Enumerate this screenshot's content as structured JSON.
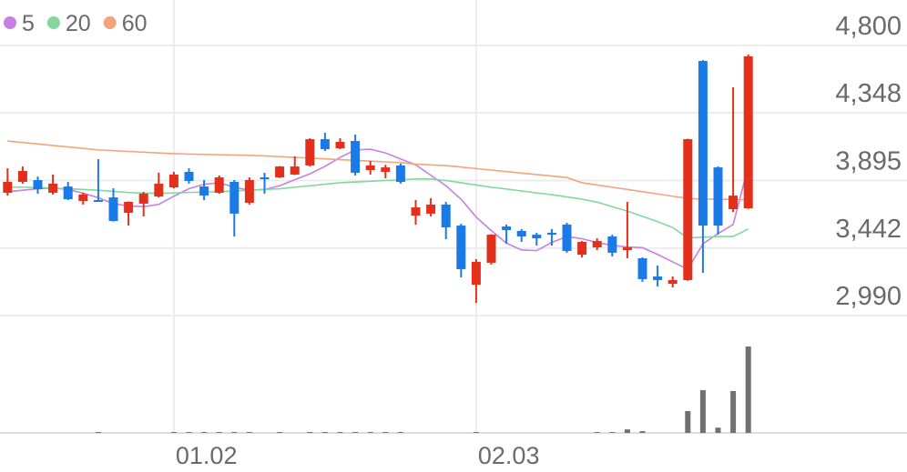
{
  "chart_data": {
    "type": "candlestick",
    "categories": [
      null,
      null,
      null,
      null,
      null,
      null,
      null,
      null,
      null,
      null,
      null,
      "01.02",
      null,
      null,
      null,
      null,
      null,
      null,
      null,
      null,
      null,
      null,
      null,
      null,
      null,
      null,
      null,
      null,
      null,
      null,
      null,
      "02.03",
      null,
      null,
      null,
      null,
      null,
      null,
      null,
      null,
      null,
      null,
      null,
      null,
      null,
      null,
      null,
      null,
      null,
      null
    ],
    "open": [
      3813,
      3886,
      3898,
      3813,
      3855,
      3758,
      3764,
      3782,
      3679,
      3740,
      3788,
      3849,
      3953,
      3855,
      3813,
      3886,
      3746,
      3916,
      3916,
      3935,
      3996,
      4172,
      4111,
      4160,
      3965,
      3953,
      3996,
      3660,
      3673,
      3734,
      3593,
      3197,
      3344,
      3587,
      3557,
      3532,
      3545,
      3600,
      3398,
      3447,
      3520,
      3429,
      3374,
      3252,
      3203,
      3228,
      4696,
      3983,
      3703,
      3709
    ],
    "high": [
      3977,
      3989,
      3922,
      3935,
      3886,
      3813,
      4038,
      3843,
      3755,
      3819,
      3947,
      3953,
      3977,
      3898,
      3929,
      3898,
      3916,
      3947,
      3992,
      4057,
      4178,
      4215,
      4178,
      4203,
      4026,
      4000,
      4008,
      3764,
      3776,
      3752,
      3605,
      3368,
      3535,
      3600,
      3570,
      3545,
      3570,
      3612,
      3490,
      3508,
      3532,
      3752,
      3380,
      3325,
      3252,
      4175,
      4702,
      3990,
      4520,
      4739
    ],
    "low": [
      3794,
      3874,
      3807,
      3801,
      3764,
      3734,
      3752,
      3620,
      3593,
      3654,
      3782,
      3843,
      3874,
      3764,
      3807,
      3520,
      3734,
      3807,
      3912,
      3932,
      3990,
      4093,
      4105,
      3929,
      3935,
      3910,
      3874,
      3599,
      3654,
      3502,
      3246,
      3075,
      3332,
      3472,
      3484,
      3459,
      3459,
      3411,
      3380,
      3429,
      3386,
      3374,
      3216,
      3185,
      3179,
      3222,
      3276,
      3532,
      3685,
      3705
    ],
    "close": [
      3886,
      3959,
      3837,
      3874,
      3770,
      3801,
      3755,
      3624,
      3752,
      3807,
      3874,
      3935,
      3892,
      3794,
      3916,
      3673,
      3898,
      3904,
      3989,
      3989,
      4172,
      4105,
      4154,
      3947,
      3996,
      3983,
      3886,
      3715,
      3734,
      3581,
      3301,
      3350,
      3532,
      3563,
      3520,
      3508,
      3532,
      3423,
      3484,
      3490,
      3411,
      3447,
      3234,
      3228,
      3228,
      4172,
      3593,
      3593,
      3794,
      4727
    ],
    "up_color": "#e2301c",
    "down_color": "#1a7be8",
    "series": [
      {
        "name": "5",
        "color": "#c77fe3",
        "values": [
          3820,
          3830,
          3840,
          3845,
          3835,
          3810,
          3780,
          3740,
          3725,
          3720,
          3735,
          3790,
          3840,
          3870,
          3880,
          3850,
          3830,
          3835,
          3860,
          3900,
          3940,
          3990,
          4050,
          4100,
          4105,
          4080,
          4040,
          4000,
          3930,
          3860,
          3770,
          3650,
          3560,
          3475,
          3430,
          3425,
          3480,
          3520,
          3505,
          3480,
          3460,
          3450,
          3445,
          3400,
          3350,
          3300,
          3470,
          3540,
          3600,
          3990
        ]
      },
      {
        "name": "20",
        "color": "#82d89c",
        "values": [
          3850,
          3850,
          3848,
          3845,
          3840,
          3835,
          3830,
          3822,
          3815,
          3810,
          3810,
          3812,
          3815,
          3818,
          3820,
          3825,
          3830,
          3835,
          3840,
          3850,
          3860,
          3870,
          3880,
          3885,
          3890,
          3895,
          3900,
          3905,
          3905,
          3895,
          3880,
          3865,
          3850,
          3838,
          3825,
          3812,
          3800,
          3785,
          3770,
          3750,
          3720,
          3690,
          3655,
          3620,
          3580,
          3510,
          3515,
          3520,
          3520,
          3570
        ]
      },
      {
        "name": "60",
        "color": "#f2a47c",
        "values": [
          4160,
          4150,
          4140,
          4130,
          4120,
          4110,
          4100,
          4095,
          4090,
          4085,
          4080,
          4075,
          4072,
          4070,
          4068,
          4066,
          4064,
          4060,
          4055,
          4050,
          4045,
          4040,
          4035,
          4030,
          4025,
          4020,
          4015,
          4005,
          4000,
          3995,
          3985,
          3975,
          3965,
          3955,
          3945,
          3935,
          3925,
          3915,
          3880,
          3865,
          3850,
          3835,
          3820,
          3805,
          3790,
          3775,
          3770,
          3770,
          3768,
          3765
        ]
      }
    ],
    "volume": [
      0,
      0,
      0,
      0,
      0,
      0,
      1,
      0,
      0,
      0,
      0,
      1,
      1,
      1,
      1,
      1,
      1,
      0,
      1,
      0,
      1,
      1,
      1,
      1,
      1,
      1,
      1,
      0,
      0,
      0,
      0,
      1,
      0,
      0,
      0,
      0,
      0,
      0,
      0,
      1,
      1,
      4,
      2,
      0,
      0,
      25,
      49,
      6,
      48,
      99
    ],
    "volume_color": "#707070",
    "ylim": [
      2990,
      4800
    ],
    "yticks": [
      {
        "value": 2990,
        "label": "2,990"
      },
      {
        "value": 3442,
        "label": "3,442"
      },
      {
        "value": 3895,
        "label": "3,895"
      },
      {
        "value": 4348,
        "label": "4,348"
      },
      {
        "value": 4800,
        "label": "4,800"
      }
    ],
    "grid": true
  }
}
